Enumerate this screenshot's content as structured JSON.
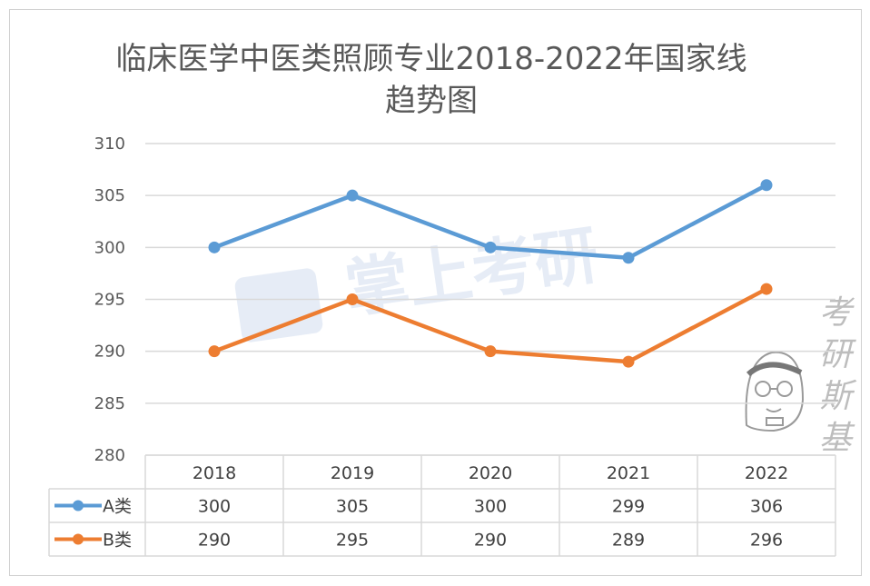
{
  "chart_data": {
    "type": "line",
    "title": "临床医学中医类照顾专业2018-2022年国家线",
    "subtitle": "趋势图",
    "categories": [
      "2018",
      "2019",
      "2020",
      "2021",
      "2022"
    ],
    "series": [
      {
        "name": "A类",
        "values": [
          300,
          305,
          300,
          299,
          306
        ],
        "color": "#5b9bd5"
      },
      {
        "name": "B类",
        "values": [
          290,
          295,
          290,
          289,
          296
        ],
        "color": "#ed7d31"
      }
    ],
    "ylim": [
      280,
      310
    ],
    "yticks": [
      280,
      285,
      290,
      295,
      300,
      305,
      310
    ],
    "grid": true,
    "legend": "data-table"
  },
  "watermark": {
    "center_text": "掌上考研",
    "side_text": [
      "考",
      "研",
      "斯",
      "基"
    ]
  }
}
